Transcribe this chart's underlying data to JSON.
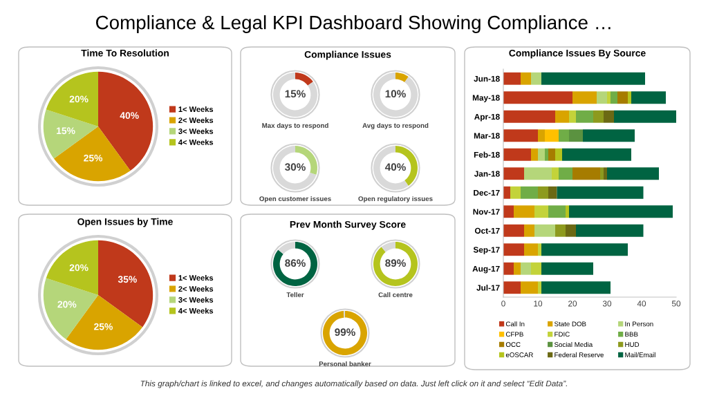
{
  "chart_data": [
    {
      "type": "other",
      "title": "Compliance & Legal KPI Dashboard Showing Compliance …",
      "annotations": [
        "This graph/chart is linked to excel, and changes automatically based on data. Just left click on it and select “Edit Data”."
      ]
    },
    {
      "type": "pie",
      "title": "Time To Resolution",
      "categories": [
        "1< Weeks",
        "2< Weeks",
        "3< Weeks",
        "4< Weeks"
      ],
      "values": [
        40,
        25,
        15,
        20
      ],
      "colors": [
        "#c0391b",
        "#d9a400",
        "#b5d67a",
        "#b5c41e"
      ],
      "value_labels": [
        "40%",
        "25%",
        "15%",
        "20%"
      ],
      "legend": "right"
    },
    {
      "type": "donut",
      "title": "Compliance Issues",
      "xlabel": "Max days to respond",
      "categories": [
        null,
        null
      ],
      "values": [
        15,
        85
      ],
      "colors": [
        "#c0391b",
        "#d9d9d9"
      ],
      "value_labels": [
        "15%",
        null
      ]
    },
    {
      "type": "donut",
      "xlabel": "Avg days to respond",
      "categories": [
        null,
        null
      ],
      "values": [
        10,
        90
      ],
      "colors": [
        "#d9a400",
        "#d9d9d9"
      ],
      "value_labels": [
        "10%",
        null
      ]
    },
    {
      "type": "donut",
      "xlabel": "Open customer issues",
      "categories": [
        null,
        null
      ],
      "values": [
        30,
        70
      ],
      "colors": [
        "#b5d67a",
        "#d9d9d9"
      ],
      "value_labels": [
        "30%",
        null
      ]
    },
    {
      "type": "donut",
      "xlabel": "Open regulatory issues",
      "categories": [
        null,
        null
      ],
      "values": [
        40,
        60
      ],
      "colors": [
        "#b5c41e",
        "#d9d9d9"
      ],
      "value_labels": [
        "40%",
        null
      ]
    },
    {
      "type": "pie",
      "title": "Open Issues by Time",
      "categories": [
        "1< Weeks",
        "2< Weeks",
        "3< Weeks",
        "4< Weeks"
      ],
      "values": [
        35,
        25,
        20,
        20
      ],
      "colors": [
        "#c0391b",
        "#d9a400",
        "#b5d67a",
        "#b5c41e"
      ],
      "value_labels": [
        "35%",
        "25%",
        "20%",
        "20%"
      ],
      "legend": "right"
    },
    {
      "type": "donut",
      "title": "Prev Month Survey Score",
      "xlabel": "Teller",
      "categories": [
        null,
        null
      ],
      "values": [
        86,
        14
      ],
      "colors": [
        "#006442",
        "#d9d9d9"
      ],
      "value_labels": [
        "86%",
        null
      ]
    },
    {
      "type": "donut",
      "xlabel": "Call centre",
      "categories": [
        null,
        null
      ],
      "values": [
        89,
        11
      ],
      "colors": [
        "#b5c41e",
        "#d9d9d9"
      ],
      "value_labels": [
        "89%",
        null
      ]
    },
    {
      "type": "donut",
      "xlabel": "Personal banker",
      "categories": [
        null,
        null
      ],
      "values": [
        99,
        1
      ],
      "colors": [
        "#d9a400",
        "#d9d9d9"
      ],
      "value_labels": [
        "99%",
        null
      ]
    },
    {
      "type": "bar",
      "orientation": "horizontal",
      "stacked": true,
      "title": "Compliance Issues By Source",
      "categories": [
        "Jun-18",
        "May-18",
        "Apr-18",
        "Mar-18",
        "Feb-18",
        "Jan-18",
        "Dec-17",
        "Nov-17",
        "Oct-17",
        "Sep-17",
        "Aug-17",
        "Jul-17"
      ],
      "xlim": [
        0,
        50
      ],
      "xticks": [
        0,
        10,
        20,
        30,
        40,
        50
      ],
      "legend": "bottom",
      "series": [
        {
          "name": "Call In",
          "color": "#c0391b",
          "values": [
            5,
            20,
            15,
            10,
            8,
            6,
            2,
            3,
            6,
            6,
            3,
            5
          ]
        },
        {
          "name": "State DOB",
          "color": "#d9a400",
          "values": [
            3,
            7,
            4,
            2,
            2,
            0,
            0,
            6,
            3,
            4,
            2,
            5
          ]
        },
        {
          "name": "In Person",
          "color": "#b5d67a",
          "values": [
            3,
            3,
            0,
            0,
            2,
            8,
            0,
            0,
            6,
            0,
            3,
            0
          ]
        },
        {
          "name": "CFPB",
          "color": "#ffc000",
          "values": [
            0,
            0,
            0,
            4,
            0,
            0,
            0,
            0,
            0,
            0,
            0,
            0
          ]
        },
        {
          "name": "FDIC",
          "color": "#c3d33a",
          "values": [
            0,
            1,
            2,
            0,
            0,
            2,
            3,
            4,
            0,
            1,
            3,
            1
          ]
        },
        {
          "name": "BBB",
          "color": "#70ad47",
          "values": [
            0,
            2,
            5,
            3,
            1,
            4,
            5,
            5,
            0,
            0,
            0,
            0
          ]
        },
        {
          "name": "OCC",
          "color": "#a67c00",
          "values": [
            0,
            3,
            0,
            0,
            2,
            8,
            0,
            0,
            0,
            0,
            0,
            0
          ]
        },
        {
          "name": "Social Media",
          "color": "#5b9240",
          "values": [
            0,
            0,
            0,
            4,
            0,
            0,
            0,
            0,
            0,
            0,
            0,
            0
          ]
        },
        {
          "name": "HUD",
          "color": "#8d9a1e",
          "values": [
            0,
            0,
            3,
            0,
            0,
            1,
            3,
            0,
            3,
            0,
            0,
            0
          ]
        },
        {
          "name": "eOSCAR",
          "color": "#b5c41e",
          "values": [
            0,
            1,
            0,
            0,
            2,
            0,
            0,
            1,
            0,
            0,
            0,
            0
          ]
        },
        {
          "name": "Federal Reserve",
          "color": "#6b6914",
          "values": [
            0,
            0,
            3,
            0,
            0,
            1,
            2.5,
            0,
            3,
            0,
            0,
            0
          ]
        },
        {
          "name": "Mail/Email",
          "color": "#006442",
          "values": [
            30,
            10,
            18,
            15,
            20,
            15,
            25,
            30,
            19.5,
            25,
            15,
            20
          ]
        }
      ]
    }
  ]
}
